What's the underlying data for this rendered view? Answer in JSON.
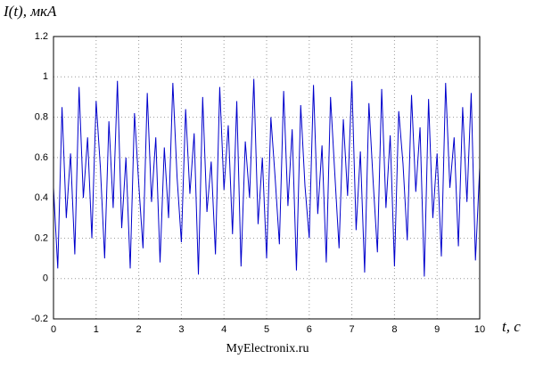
{
  "chart_data": {
    "type": "line",
    "ylabel": "I(t), мкА",
    "xlabel": "t, c",
    "annotation": "MyElectronix.ru",
    "x": [
      0,
      0.1,
      0.2,
      0.3,
      0.4,
      0.5,
      0.6,
      0.7,
      0.8,
      0.9,
      1,
      1.1,
      1.2,
      1.3,
      1.4,
      1.5,
      1.6,
      1.7,
      1.8,
      1.9,
      2,
      2.1,
      2.2,
      2.3,
      2.4,
      2.5,
      2.6,
      2.7,
      2.8,
      2.9,
      3,
      3.1,
      3.2,
      3.3,
      3.4,
      3.5,
      3.6,
      3.7,
      3.8,
      3.9,
      4,
      4.1,
      4.2,
      4.3,
      4.4,
      4.5,
      4.6,
      4.7,
      4.8,
      4.9,
      5,
      5.1,
      5.2,
      5.3,
      5.4,
      5.5,
      5.6,
      5.7,
      5.8,
      5.9,
      6,
      6.1,
      6.2,
      6.3,
      6.4,
      6.5,
      6.6,
      6.7,
      6.8,
      6.9,
      7,
      7.1,
      7.2,
      7.3,
      7.4,
      7.5,
      7.6,
      7.7,
      7.8,
      7.9,
      8,
      8.1,
      8.2,
      8.3,
      8.4,
      8.5,
      8.6,
      8.7,
      8.8,
      8.9,
      9,
      9.1,
      9.2,
      9.3,
      9.4,
      9.5,
      9.6,
      9.7,
      9.8,
      9.9,
      10
    ],
    "series": [
      {
        "color": "#0000cc",
        "values": [
          0.45,
          0.05,
          0.85,
          0.3,
          0.62,
          0.12,
          0.95,
          0.4,
          0.7,
          0.2,
          0.88,
          0.55,
          0.1,
          0.78,
          0.35,
          0.98,
          0.25,
          0.6,
          0.05,
          0.82,
          0.47,
          0.15,
          0.92,
          0.38,
          0.7,
          0.08,
          0.65,
          0.3,
          0.97,
          0.5,
          0.18,
          0.84,
          0.42,
          0.72,
          0.02,
          0.9,
          0.33,
          0.58,
          0.12,
          0.95,
          0.44,
          0.76,
          0.22,
          0.88,
          0.06,
          0.68,
          0.4,
          0.99,
          0.27,
          0.6,
          0.1,
          0.8,
          0.5,
          0.17,
          0.93,
          0.36,
          0.74,
          0.04,
          0.86,
          0.46,
          0.2,
          0.96,
          0.32,
          0.66,
          0.08,
          0.9,
          0.52,
          0.15,
          0.79,
          0.41,
          0.98,
          0.24,
          0.63,
          0.03,
          0.87,
          0.48,
          0.13,
          0.94,
          0.35,
          0.71,
          0.06,
          0.83,
          0.57,
          0.19,
          0.91,
          0.43,
          0.75,
          0.01,
          0.89,
          0.3,
          0.62,
          0.11,
          0.97,
          0.45,
          0.7,
          0.16,
          0.85,
          0.38,
          0.92,
          0.09,
          0.55
        ]
      }
    ],
    "xlim": [
      0,
      10
    ],
    "xticks": [
      0,
      1,
      2,
      3,
      4,
      5,
      6,
      7,
      8,
      9,
      10
    ],
    "ylim": [
      -0.2,
      1.2
    ],
    "yticks": [
      -0.2,
      0,
      0.2,
      0.4,
      0.6,
      0.8,
      1,
      1.2
    ],
    "grid": true
  }
}
